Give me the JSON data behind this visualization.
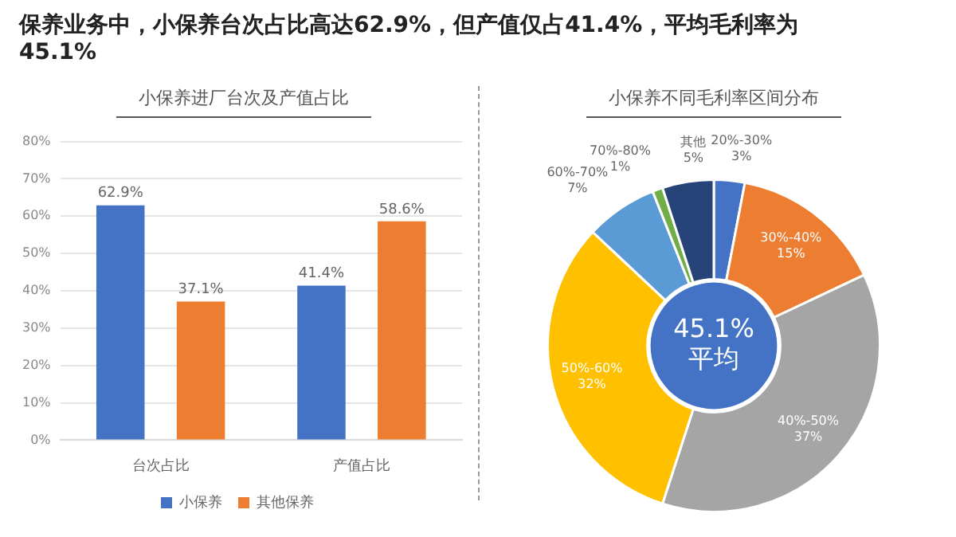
{
  "chart_data": [
    {
      "type": "bar",
      "title": "小保养进厂台次及产值占比",
      "annotations": [
        "保养业务中，小保养台次占比高达62.9%，但产值仅占41.4%，平均毛利率为45.1%"
      ],
      "categories": [
        "台次占比",
        "产值占比"
      ],
      "series": [
        {
          "name": "小保养",
          "color": "#4472c4",
          "values": [
            62.9,
            41.4
          ],
          "value_labels": [
            "62.9%",
            "41.4%"
          ]
        },
        {
          "name": "其他保养",
          "color": "#ed7d31",
          "values": [
            37.1,
            58.6
          ],
          "value_labels": [
            "37.1%",
            "58.6%"
          ]
        }
      ],
      "ylim": [
        0,
        80
      ],
      "yticks": [
        {
          "value": 0,
          "label": "0%"
        },
        {
          "value": 10,
          "label": "10%"
        },
        {
          "value": 20,
          "label": "20%"
        },
        {
          "value": 30,
          "label": "30%"
        },
        {
          "value": 40,
          "label": "40%"
        },
        {
          "value": 50,
          "label": "50%"
        },
        {
          "value": 60,
          "label": "60%"
        },
        {
          "value": 70,
          "label": "70%"
        },
        {
          "value": 80,
          "label": "80%"
        }
      ],
      "grid": "y",
      "legend": "bottom"
    },
    {
      "type": "donut",
      "title": "小保养不同毛利率区间分布",
      "annotations": [
        "45.1%",
        "平均"
      ],
      "categories": [
        "20%-30%",
        "30%-40%",
        "40%-50%",
        "50%-60%",
        "60%-70%",
        "70%-80%",
        "其他"
      ],
      "values": [
        3,
        15,
        37,
        32,
        7,
        1,
        5
      ],
      "value_labels": [
        "3%",
        "15%",
        "37%",
        "32%",
        "7%",
        "1%",
        "5%"
      ],
      "colors": [
        "#4472c4",
        "#ed7d31",
        "#a5a5a5",
        "#ffc000",
        "#5b9bd5",
        "#70ad47",
        "#264478"
      ]
    }
  ]
}
